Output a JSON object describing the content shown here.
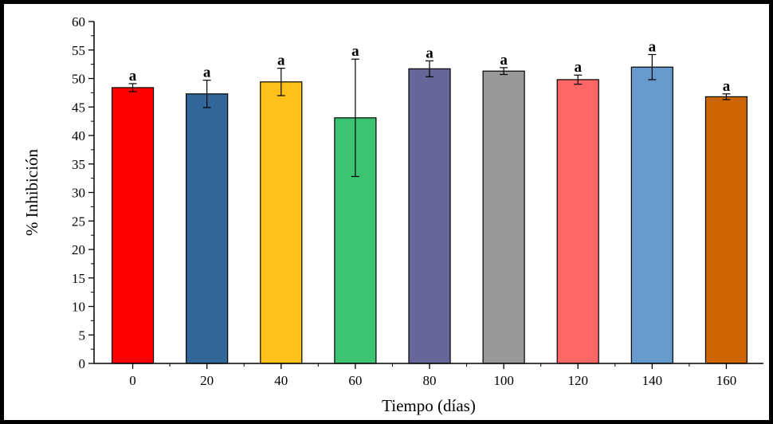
{
  "chart_data": {
    "type": "bar",
    "xlabel": "Tiempo (días)",
    "ylabel": "% Inhibición",
    "ylim": [
      0,
      60
    ],
    "yticks": [
      0,
      5,
      10,
      15,
      20,
      25,
      30,
      35,
      40,
      45,
      50,
      55,
      60
    ],
    "categories": [
      "0",
      "20",
      "40",
      "60",
      "80",
      "100",
      "120",
      "140",
      "160"
    ],
    "values": [
      48.4,
      47.3,
      49.4,
      43.1,
      51.7,
      51.3,
      49.8,
      52.0,
      46.8
    ],
    "errors": [
      0.7,
      2.4,
      2.4,
      10.3,
      1.4,
      0.6,
      0.8,
      2.2,
      0.5
    ],
    "significance": [
      "a",
      "a",
      "a",
      "a",
      "a",
      "a",
      "a",
      "a",
      "a"
    ],
    "colors": [
      "#ff0000",
      "#336699",
      "#ffc11a",
      "#3cc472",
      "#666699",
      "#999999",
      "#ff6666",
      "#6699cc",
      "#cc6600"
    ],
    "grid": false,
    "legend": "none"
  }
}
